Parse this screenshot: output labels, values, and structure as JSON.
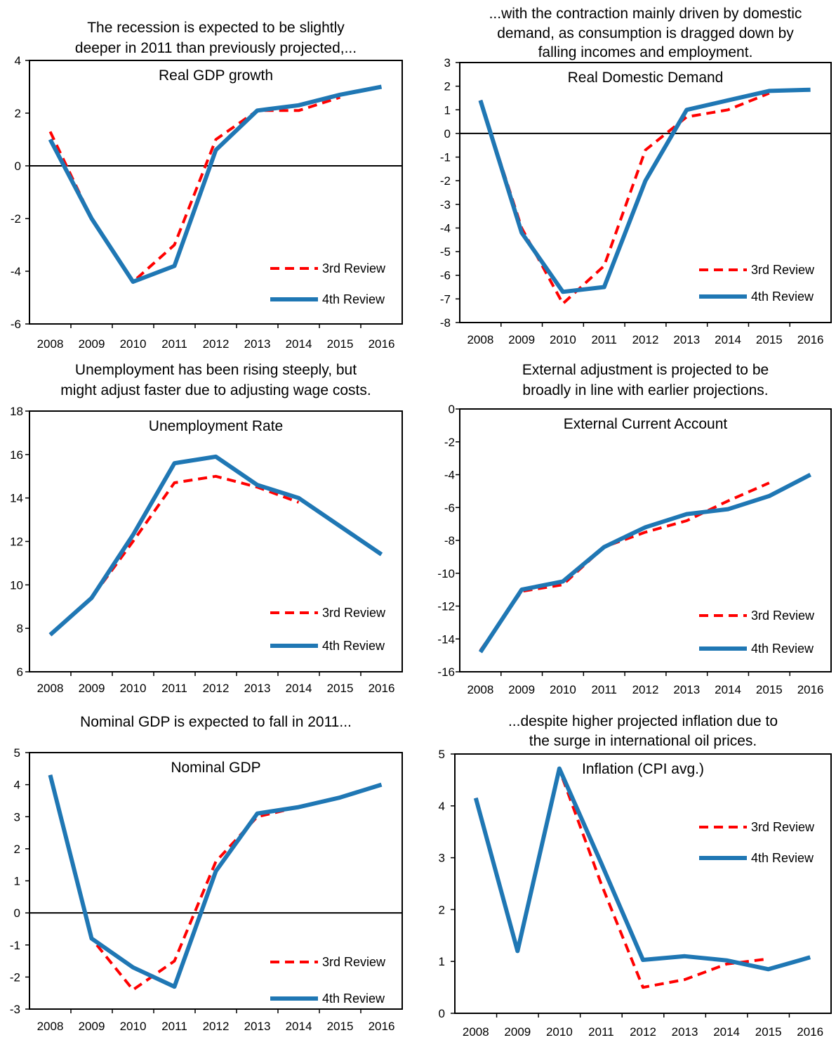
{
  "colors": {
    "review3": "#ff0000",
    "review4": "#1f77b4",
    "axis": "#000000"
  },
  "chart_data": [
    {
      "type": "line",
      "heading": [
        "The recession is expected to be slightly",
        "deeper in 2011  than previously projected,..."
      ],
      "title": "Real GDP growth",
      "categories": [
        "2008",
        "2009",
        "2010",
        "2011",
        "2012",
        "2013",
        "2014",
        "2015",
        "2016"
      ],
      "ylim": [
        -6,
        4
      ],
      "yticks": [
        -6,
        -4,
        -2,
        0,
        2,
        4
      ],
      "zero_line": true,
      "legend_position": "bottom-right",
      "series": [
        {
          "name": "3rd Review",
          "style": "dashed",
          "values": [
            1.3,
            -2.0,
            -4.4,
            -3.0,
            1.0,
            2.1,
            2.1,
            2.6,
            null
          ]
        },
        {
          "name": "4th Review",
          "style": "solid",
          "values": [
            1.0,
            -2.0,
            -4.4,
            -3.8,
            0.6,
            2.1,
            2.3,
            2.7,
            3.0
          ]
        }
      ]
    },
    {
      "type": "line",
      "heading": [
        "...with the contraction mainly driven by domestic",
        "demand, as consumption is dragged down by",
        "falling incomes and employment."
      ],
      "title": "Real Domestic Demand",
      "categories": [
        "2008",
        "2009",
        "2010",
        "2011",
        "2012",
        "2013",
        "2014",
        "2015",
        "2016"
      ],
      "ylim": [
        -8,
        3
      ],
      "yticks": [
        -8,
        -7,
        -6,
        -5,
        -4,
        -3,
        -2,
        -1,
        0,
        1,
        2,
        3
      ],
      "zero_line": true,
      "legend_position": "bottom-right",
      "series": [
        {
          "name": "3rd Review",
          "style": "dashed",
          "values": [
            1.4,
            -4.0,
            -7.2,
            -5.6,
            -0.7,
            0.7,
            1.0,
            1.7,
            null
          ]
        },
        {
          "name": "4th Review",
          "style": "solid",
          "values": [
            1.4,
            -4.2,
            -6.7,
            -6.5,
            -2.0,
            1.0,
            1.4,
            1.8,
            1.85
          ]
        }
      ]
    },
    {
      "type": "line",
      "heading": [
        "Unemployment has been rising steeply, but",
        "might adjust faster due to adjusting wage costs."
      ],
      "title": "Unemployment Rate",
      "categories": [
        "2008",
        "2009",
        "2010",
        "2011",
        "2012",
        "2013",
        "2014",
        "2015",
        "2016"
      ],
      "ylim": [
        6,
        18
      ],
      "yticks": [
        6,
        8,
        10,
        12,
        14,
        16,
        18
      ],
      "zero_line": false,
      "legend_position": "bottom-right",
      "series": [
        {
          "name": "3rd Review",
          "style": "dashed",
          "values": [
            7.7,
            9.4,
            12.0,
            14.7,
            15.0,
            14.5,
            13.8,
            null,
            null
          ]
        },
        {
          "name": "4th Review",
          "style": "solid",
          "values": [
            7.7,
            9.4,
            12.3,
            15.6,
            15.9,
            14.6,
            14.0,
            12.7,
            11.4
          ]
        }
      ]
    },
    {
      "type": "line",
      "heading": [
        "External adjustment is projected to be",
        "broadly in line with earlier projections."
      ],
      "title": "External Current  Account",
      "categories": [
        "2008",
        "2009",
        "2010",
        "2011",
        "2012",
        "2013",
        "2014",
        "2015",
        "2016"
      ],
      "ylim": [
        -16,
        0
      ],
      "yticks": [
        -16,
        -14,
        -12,
        -10,
        -8,
        -6,
        -4,
        -2,
        0
      ],
      "zero_line": false,
      "legend_position": "bottom-right",
      "series": [
        {
          "name": "3rd Review",
          "style": "dashed",
          "values": [
            -14.7,
            -11.1,
            -10.7,
            -8.4,
            -7.5,
            -6.8,
            -5.6,
            -4.5,
            null
          ]
        },
        {
          "name": "4th Review",
          "style": "solid",
          "values": [
            -14.8,
            -11.0,
            -10.5,
            -8.4,
            -7.2,
            -6.4,
            -6.1,
            -5.3,
            -4.0
          ]
        }
      ]
    },
    {
      "type": "line",
      "heading": [
        "Nominal GDP is expected to fall in 2011..."
      ],
      "title": "Nominal GDP",
      "categories": [
        "2008",
        "2009",
        "2010",
        "2011",
        "2012",
        "2013",
        "2014",
        "2015",
        "2016"
      ],
      "ylim": [
        -3,
        5
      ],
      "yticks": [
        -3,
        -2,
        -1,
        0,
        1,
        2,
        3,
        4,
        5
      ],
      "zero_line": true,
      "legend_position": "bottom-right",
      "series": [
        {
          "name": "3rd Review",
          "style": "dashed",
          "values": [
            4.3,
            -0.8,
            -2.4,
            -1.5,
            1.6,
            3.0,
            3.3,
            null,
            null
          ]
        },
        {
          "name": "4th Review",
          "style": "solid",
          "values": [
            4.3,
            -0.8,
            -1.7,
            -2.3,
            1.3,
            3.1,
            3.3,
            3.6,
            4.0
          ]
        }
      ]
    },
    {
      "type": "line",
      "heading": [
        "...despite higher projected inflation due to",
        "the surge in international  oil prices."
      ],
      "title": "Inflation (CPI avg.)",
      "categories": [
        "2008",
        "2009",
        "2010",
        "2011",
        "2012",
        "2013",
        "2014",
        "2015",
        "2016"
      ],
      "ylim": [
        0,
        5
      ],
      "yticks": [
        0,
        1,
        2,
        3,
        4,
        5
      ],
      "zero_line": false,
      "legend_position": "top-right",
      "series": [
        {
          "name": "3rd Review",
          "style": "dashed",
          "values": [
            4.15,
            1.2,
            4.7,
            2.5,
            0.5,
            0.65,
            0.95,
            1.05,
            null
          ]
        },
        {
          "name": "4th Review",
          "style": "solid",
          "values": [
            4.15,
            1.2,
            4.72,
            2.9,
            1.03,
            1.1,
            1.02,
            0.85,
            1.08
          ]
        }
      ]
    }
  ]
}
